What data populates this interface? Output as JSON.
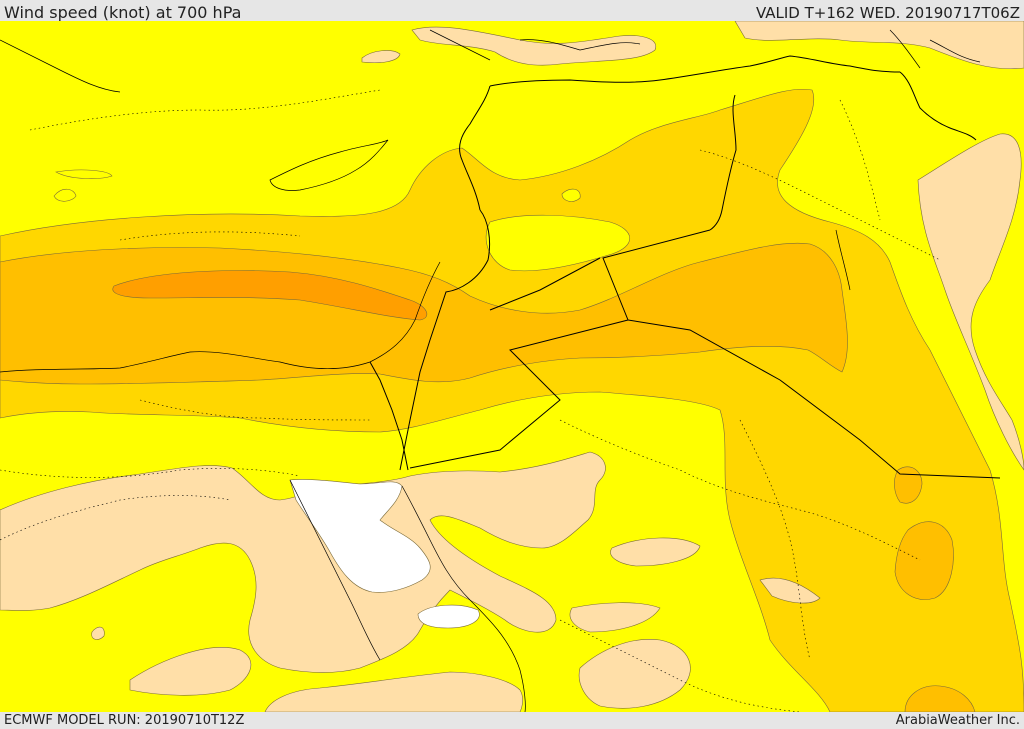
{
  "header": {
    "title": "Wind speed (knot) at 700 hPa",
    "valid": "VALID T+162 WED. 20190717T06Z"
  },
  "footer": {
    "model_run": "ECMWF MODEL RUN: 20190710T12Z",
    "credit": "ArabiaWeather Inc."
  },
  "colors": {
    "band_lowest": "#ffffff",
    "band_low": "#ffdfa8",
    "band_mid": "#ffff00",
    "band_high": "#ffd700",
    "band_higher": "#ffbf00",
    "band_highest": "#ff9f00",
    "boundaries": "#000000"
  }
}
